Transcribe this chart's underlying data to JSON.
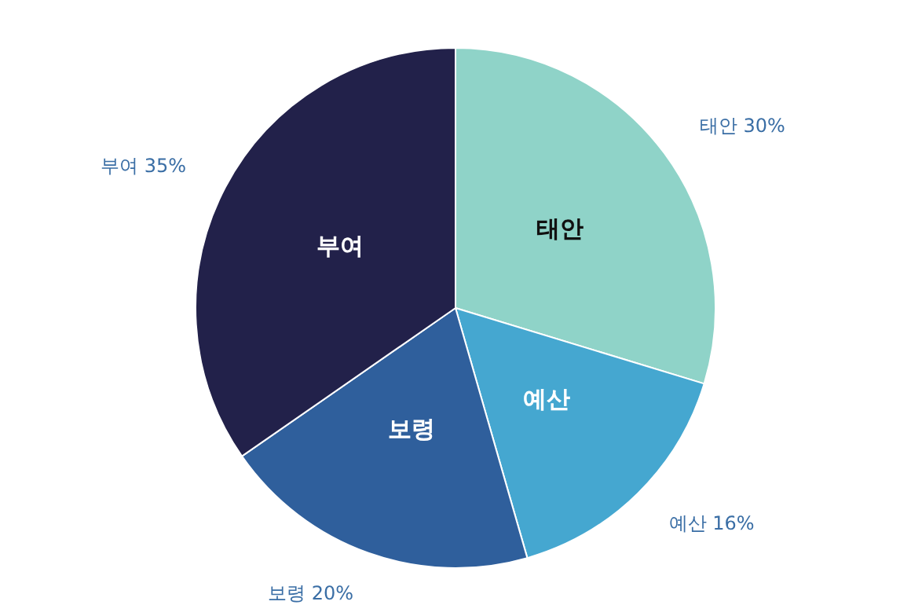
{
  "chart_data": {
    "type": "pie",
    "categories": [
      "태안",
      "예산",
      "보령",
      "부여"
    ],
    "values": [
      30,
      16,
      20,
      35
    ],
    "colors": [
      "#8fd3c8",
      "#45a7d0",
      "#2f5f9c",
      "#22214a"
    ],
    "value_labels": [
      "태안 30%",
      "예산 16%",
      "보령 20%",
      "부여 35%"
    ],
    "legend": false
  }
}
